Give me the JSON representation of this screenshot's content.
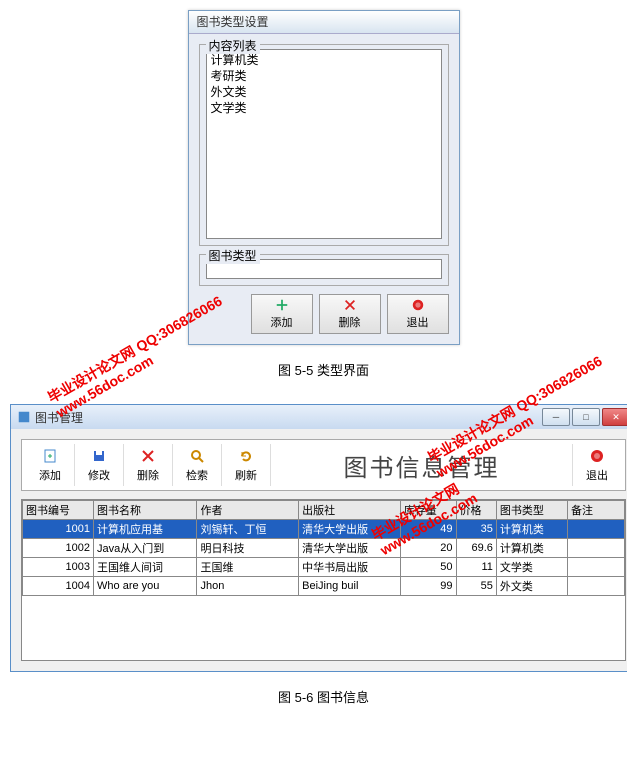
{
  "dialog1": {
    "title": "图书类型设置",
    "group_content": "内容列表",
    "items": [
      "计算机类",
      "考研类",
      "外文类",
      "文学类"
    ],
    "group_type": "图书类型",
    "input_value": "",
    "btn_add": "添加",
    "btn_del": "删除",
    "btn_exit": "退出"
  },
  "caption1": "图 5-5 类型界面",
  "window2": {
    "title": "图书管理",
    "toolbar": {
      "add": "添加",
      "edit": "修改",
      "del": "删除",
      "search": "检索",
      "refresh": "刷新",
      "exit": "退出"
    },
    "heading": "图书信息管理",
    "columns": [
      "图书编号",
      "图书名称",
      "作者",
      "出版社",
      "库存量",
      "价格",
      "图书类型",
      "备注"
    ],
    "rows": [
      {
        "id": "1001",
        "name": "计算机应用基",
        "author": "刘锡轩、丁恒",
        "pub": "清华大学出版",
        "stock": "49",
        "price": "35",
        "type": "计算机类",
        "note": ""
      },
      {
        "id": "1002",
        "name": "Java从入门到",
        "author": "明日科技",
        "pub": "清华大学出版",
        "stock": "20",
        "price": "69.6",
        "type": "计算机类",
        "note": ""
      },
      {
        "id": "1003",
        "name": "王国维人间词",
        "author": "王国维",
        "pub": "中华书局出版",
        "stock": "50",
        "price": "11",
        "type": "文学类",
        "note": ""
      },
      {
        "id": "1004",
        "name": "Who are you",
        "author": "Jhon",
        "pub": "BeiJing buil",
        "stock": "99",
        "price": "55",
        "type": "外文类",
        "note": ""
      }
    ]
  },
  "caption2": "图 5-6 图书信息",
  "watermark": {
    "line1": "毕业设计论文网",
    "line2": "www.56doc.com",
    "line3": "QQ:306826066"
  },
  "colors": {
    "titlebar_grad_top": "#ffffff",
    "titlebar_grad_bot": "#d8e4f0",
    "dialog_bg": "#e8ecf4",
    "border": "#7a9fc4",
    "selection": "#2060c0",
    "watermark": "#e00000"
  }
}
